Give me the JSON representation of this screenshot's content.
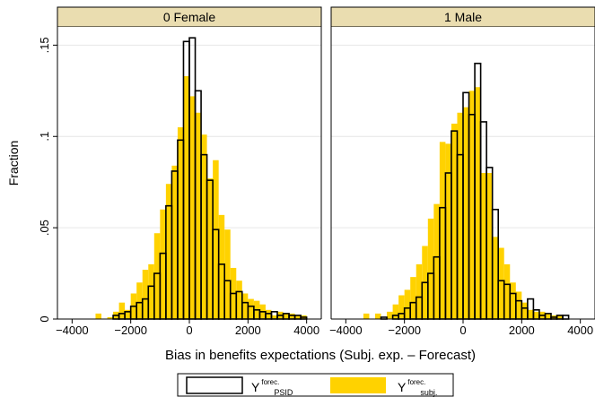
{
  "chart_data": {
    "type": "bar",
    "ylabel": "Fraction",
    "xlabel": "Bias in benefits expectations (Subj. exp. – Forecast)",
    "ylim": [
      0,
      0.16
    ],
    "xlim": [
      -4500,
      4500
    ],
    "yticks": [
      0,
      0.05,
      0.1,
      0.15
    ],
    "ytick_labels": [
      "0",
      ".05",
      ".1",
      ".15"
    ],
    "xticks": [
      -4000,
      -2000,
      0,
      2000,
      4000
    ],
    "xtick_labels": [
      "−4000",
      "−2000",
      "0",
      "2000",
      "4000"
    ],
    "grid": true,
    "legend_position": "bottom-center",
    "colors": {
      "subj": "#FFD200",
      "psid_edge": "#000000",
      "strip": "#EADDB0"
    },
    "series": [
      {
        "key": "psid",
        "label_main": "Y",
        "label_sup": "forec.",
        "label_sub": "PSID",
        "style": "outline",
        "bin_width": 200
      },
      {
        "key": "subj",
        "label_main": "Y",
        "label_sup": "forec.",
        "label_sub": "subj.",
        "style": "fill",
        "bin_width": 200
      }
    ],
    "panels": [
      {
        "title": "0 Female",
        "subj": {
          "centers": [
            -3100,
            -2700,
            -2500,
            -2300,
            -2100,
            -1900,
            -1700,
            -1500,
            -1300,
            -1100,
            -900,
            -700,
            -500,
            -300,
            -100,
            100,
            300,
            500,
            700,
            900,
            1100,
            1300,
            1500,
            1700,
            1900,
            2100,
            2300,
            2500,
            2700,
            2900,
            3100,
            3300,
            3500,
            3700,
            3900
          ],
          "values": [
            0.003,
            0.001,
            0.004,
            0.009,
            0.005,
            0.014,
            0.02,
            0.027,
            0.03,
            0.047,
            0.06,
            0.074,
            0.084,
            0.105,
            0.133,
            0.122,
            0.113,
            0.101,
            0.077,
            0.087,
            0.057,
            0.049,
            0.028,
            0.021,
            0.014,
            0.011,
            0.01,
            0.008,
            0.005,
            0.002,
            0.004,
            0.003,
            0.003,
            0.002,
            0.002
          ]
        },
        "psid": {
          "centers": [
            -2500,
            -2300,
            -2100,
            -1900,
            -1700,
            -1500,
            -1300,
            -1100,
            -900,
            -700,
            -500,
            -300,
            -100,
            100,
            300,
            500,
            700,
            900,
            1100,
            1300,
            1500,
            1700,
            1900,
            2100,
            2300,
            2500,
            2700,
            2900,
            3100,
            3300,
            3500,
            3700,
            3900
          ],
          "values": [
            0.002,
            0.003,
            0.004,
            0.007,
            0.009,
            0.011,
            0.018,
            0.025,
            0.036,
            0.062,
            0.081,
            0.098,
            0.152,
            0.154,
            0.125,
            0.09,
            0.076,
            0.049,
            0.03,
            0.021,
            0.014,
            0.015,
            0.009,
            0.007,
            0.005,
            0.004,
            0.003,
            0.004,
            0.002,
            0.003,
            0.002,
            0.002,
            0.001
          ]
        }
      },
      {
        "title": "1 Male",
        "subj": {
          "centers": [
            -3300,
            -2900,
            -2500,
            -2300,
            -2100,
            -1900,
            -1700,
            -1500,
            -1300,
            -1100,
            -900,
            -700,
            -500,
            -300,
            -100,
            100,
            300,
            500,
            700,
            900,
            1100,
            1300,
            1500,
            1700,
            1900,
            2100,
            2300,
            2500,
            2700,
            2900,
            3100,
            3300
          ],
          "values": [
            0.003,
            0.003,
            0.004,
            0.008,
            0.013,
            0.016,
            0.023,
            0.03,
            0.04,
            0.055,
            0.063,
            0.097,
            0.096,
            0.107,
            0.113,
            0.116,
            0.125,
            0.127,
            0.08,
            0.08,
            0.045,
            0.039,
            0.03,
            0.02,
            0.015,
            0.009,
            0.005,
            0.004,
            0.004,
            0.003,
            0.002,
            0.002
          ]
        },
        "psid": {
          "centers": [
            -2700,
            -2300,
            -2100,
            -1900,
            -1700,
            -1500,
            -1300,
            -1100,
            -900,
            -700,
            -500,
            -300,
            -100,
            100,
            300,
            500,
            700,
            900,
            1100,
            1300,
            1500,
            1700,
            1900,
            2100,
            2300,
            2500,
            2700,
            2900,
            3100,
            3300,
            3500
          ],
          "values": [
            0.001,
            0.002,
            0.003,
            0.006,
            0.009,
            0.012,
            0.02,
            0.025,
            0.034,
            0.061,
            0.08,
            0.103,
            0.09,
            0.124,
            0.112,
            0.14,
            0.108,
            0.083,
            0.06,
            0.021,
            0.019,
            0.014,
            0.01,
            0.006,
            0.011,
            0.005,
            0.002,
            0.003,
            0.001,
            0.002,
            0.002
          ]
        }
      }
    ]
  }
}
